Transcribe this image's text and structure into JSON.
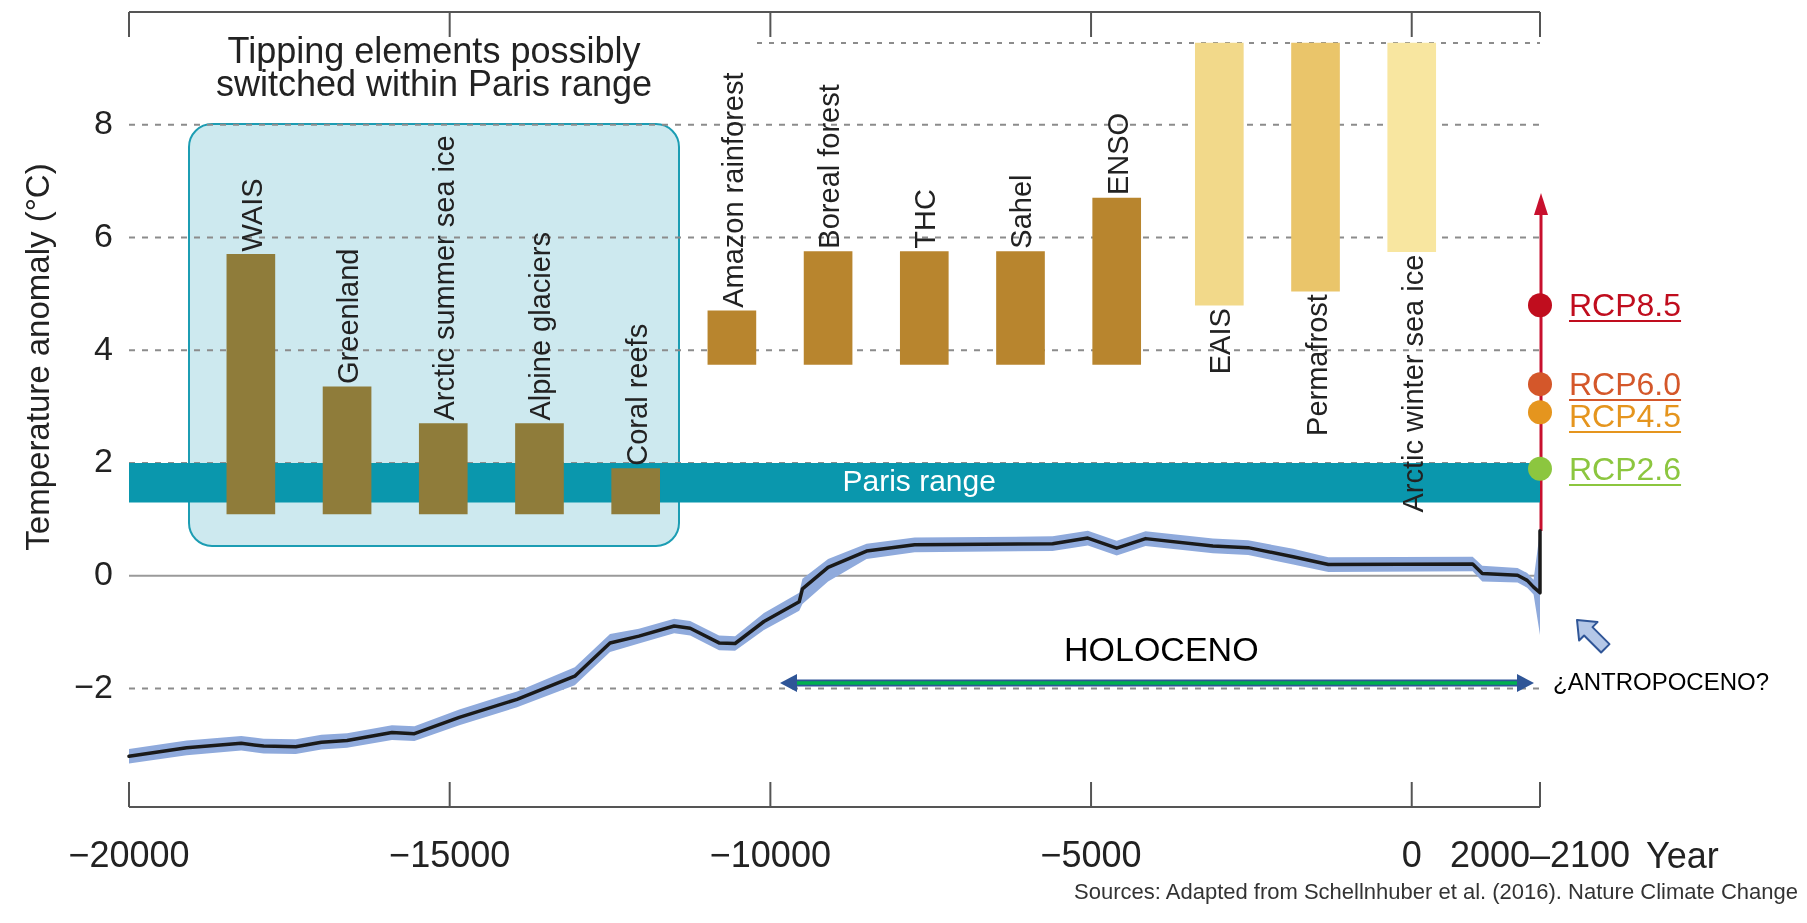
{
  "chart_data": {
    "type": "line",
    "xlabel": "Year",
    "ylabel": "Temperature anomaly (°C)",
    "xlim": [
      -20000,
      2000
    ],
    "xticks": [
      -20000,
      -15000,
      -10000,
      -5000,
      0,
      {
        "value": 2000,
        "label": "2000–2100"
      }
    ],
    "ylim": [
      -4.1,
      10
    ],
    "yticks": [
      -2,
      0,
      2,
      4,
      6,
      8
    ],
    "grid": "y",
    "bands": [
      {
        "axis": "y",
        "from": 1.3,
        "to": 2.0,
        "label": "Paris range",
        "color": "#0a97ad"
      }
    ],
    "ref_lines": [
      {
        "axis": "y",
        "value": 9.45,
        "line_style": "dotted",
        "color": "#8c8c8c"
      }
    ],
    "annotations": [
      "Tipping elements possibly switched within Paris range",
      "HOLOCENO",
      "¿ANTROPOCENO?",
      "Sources: Adapted from Schellnhuber et al. (2016). Nature Climate Change"
    ],
    "series": [
      {
        "color": "#1a1a1a",
        "x": [
          -20000,
          -19100,
          -18250,
          -17900,
          -17400,
          -17000,
          -16600,
          -15900,
          -15550,
          -14850,
          -13950,
          -13050,
          -12500,
          -12050,
          -11500,
          -11250,
          -10800,
          -10550,
          -10100,
          -9550,
          -9500,
          -9100,
          -8500,
          -7750,
          -5600,
          -5050,
          -4600,
          -4150,
          -3100,
          -2550,
          -1850,
          -1300,
          950,
          1100,
          1650,
          1800,
          1900,
          2000,
          2000
        ],
        "values": [
          -3.2,
          -3.05,
          -2.97,
          -3.02,
          -3.03,
          -2.95,
          -2.92,
          -2.78,
          -2.8,
          -2.51,
          -2.19,
          -1.78,
          -1.19,
          -1.07,
          -0.89,
          -0.93,
          -1.19,
          -1.2,
          -0.81,
          -0.46,
          -0.23,
          0.15,
          0.44,
          0.55,
          0.57,
          0.67,
          0.49,
          0.66,
          0.53,
          0.5,
          0.34,
          0.2,
          0.21,
          0.04,
          0.01,
          -0.08,
          -0.2,
          -0.3,
          0.8
        ],
        "lower": [
          -3.33,
          -3.18,
          -3.1,
          -3.15,
          -3.16,
          -3.08,
          -3.05,
          -2.91,
          -2.93,
          -2.65,
          -2.33,
          -1.94,
          -1.35,
          -1.2,
          -1.02,
          -1.06,
          -1.32,
          -1.33,
          -0.96,
          -0.62,
          -0.5,
          -0.1,
          0.3,
          0.42,
          0.44,
          0.54,
          0.36,
          0.53,
          0.4,
          0.37,
          0.2,
          0.07,
          0.08,
          -0.1,
          -0.12,
          -0.21,
          -0.33,
          -1.05,
          -1.05
        ],
        "upper": [
          -3.07,
          -2.92,
          -2.84,
          -2.89,
          -2.9,
          -2.82,
          -2.79,
          -2.65,
          -2.67,
          -2.37,
          -2.05,
          -1.62,
          -1.03,
          -0.94,
          -0.76,
          -0.8,
          -1.06,
          -1.07,
          -0.66,
          -0.3,
          -0.05,
          0.3,
          0.57,
          0.68,
          0.7,
          0.8,
          0.62,
          0.79,
          0.66,
          0.63,
          0.48,
          0.33,
          0.34,
          0.18,
          0.14,
          0.05,
          -0.07,
          0.8,
          0.85
        ]
      },
      {
        "type": "bar",
        "name": "WAIS",
        "color": "#8f7c3a",
        "x": [
          -18100
        ],
        "base": [
          1.1
        ],
        "values": [
          4.6
        ]
      },
      {
        "type": "bar",
        "name": "Greenland",
        "color": "#8f7c3a",
        "x": [
          -16600
        ],
        "base": [
          1.1
        ],
        "values": [
          2.25
        ]
      },
      {
        "type": "bar",
        "name": "Arctic summer sea ice",
        "color": "#8f7c3a",
        "x": [
          -15100
        ],
        "base": [
          1.1
        ],
        "values": [
          1.6
        ]
      },
      {
        "type": "bar",
        "name": "Alpine glaciers",
        "color": "#8f7c3a",
        "x": [
          -13600
        ],
        "base": [
          1.1
        ],
        "values": [
          1.6
        ]
      },
      {
        "type": "bar",
        "name": "Coral reefs",
        "color": "#8f7c3a",
        "x": [
          -12100
        ],
        "base": [
          1.1
        ],
        "values": [
          0.8
        ]
      },
      {
        "type": "bar",
        "name": "Amazon rainforest",
        "color": "#b8852e",
        "x": [
          -10600
        ],
        "base": [
          3.75
        ],
        "values": [
          0.95
        ]
      },
      {
        "type": "bar",
        "name": "Boreal forest",
        "color": "#b8852e",
        "x": [
          -9100
        ],
        "base": [
          3.75
        ],
        "values": [
          2.0
        ]
      },
      {
        "type": "bar",
        "name": "THC",
        "color": "#b8852e",
        "x": [
          -7600
        ],
        "base": [
          3.75
        ],
        "values": [
          2.0
        ]
      },
      {
        "type": "bar",
        "name": "Sahel",
        "color": "#b8852e",
        "x": [
          -6100
        ],
        "base": [
          3.75
        ],
        "values": [
          2.0
        ]
      },
      {
        "type": "bar",
        "name": "ENSO",
        "color": "#b8852e",
        "x": [
          -4600
        ],
        "base": [
          3.75
        ],
        "values": [
          2.95
        ]
      },
      {
        "type": "bar",
        "name": "EAIS",
        "color": "#f2d98a",
        "x": [
          -3000
        ],
        "base": [
          4.8
        ],
        "values": [
          4.65
        ]
      },
      {
        "type": "bar",
        "name": "Permafrost",
        "color": "#eac56a",
        "x": [
          -1500
        ],
        "base": [
          5.05
        ],
        "values": [
          4.4
        ]
      },
      {
        "type": "bar",
        "name": "Arctic winter sea ice",
        "color": "#f8e6a0",
        "x": [
          0
        ],
        "base": [
          5.75
        ],
        "values": [
          3.7
        ]
      },
      {
        "type": "scatter",
        "name": "RCP8.5",
        "color": "#c00d1e",
        "marker": "circle",
        "x": [
          2000
        ],
        "values": [
          4.8
        ]
      },
      {
        "type": "scatter",
        "name": "RCP6.0",
        "color": "#d4572a",
        "marker": "circle",
        "x": [
          2000
        ],
        "values": [
          3.4
        ]
      },
      {
        "type": "scatter",
        "name": "RCP4.5",
        "color": "#e5951e",
        "marker": "circle",
        "x": [
          2000
        ],
        "values": [
          2.9
        ]
      },
      {
        "type": "scatter",
        "name": "RCP2.6",
        "color": "#8cc63f",
        "marker": "circle",
        "x": [
          2000
        ],
        "values": [
          1.9
        ]
      }
    ]
  }
}
